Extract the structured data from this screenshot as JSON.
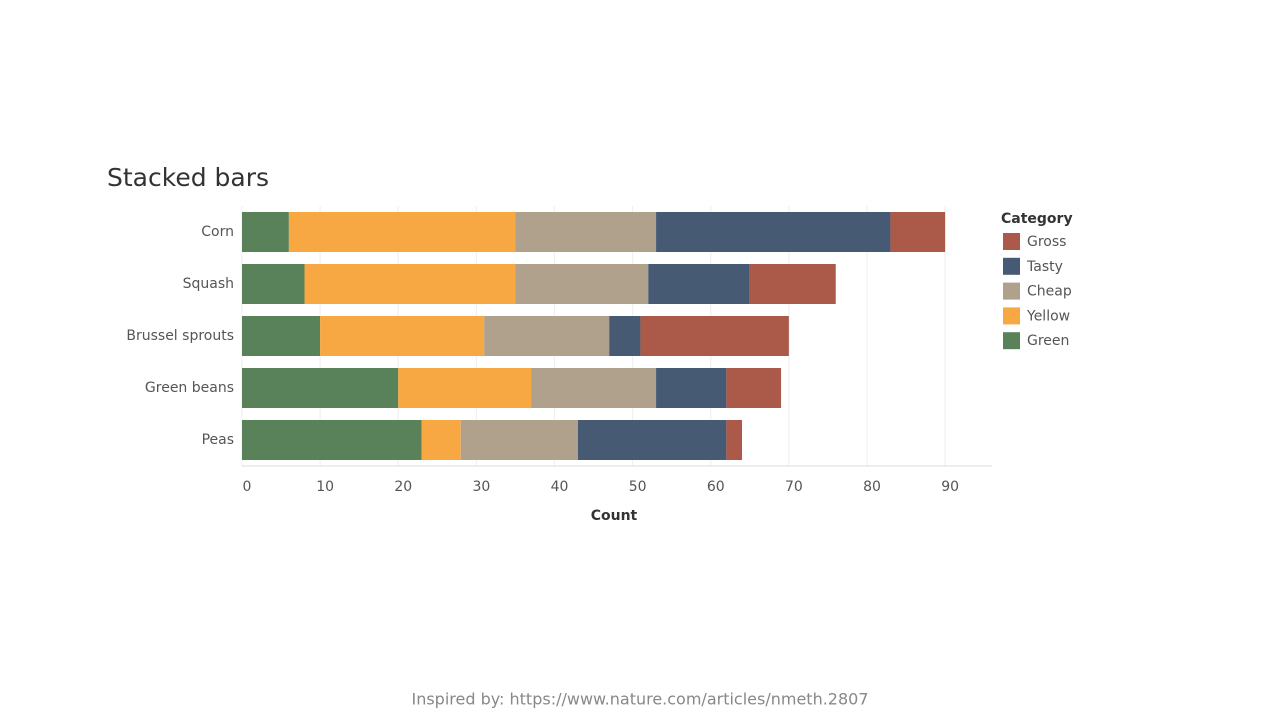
{
  "chart_data": {
    "type": "stacked-bar-horizontal",
    "title": "Stacked bars",
    "categories": [
      "Corn",
      "Squash",
      "Brussel sprouts",
      "Green beans",
      "Peas"
    ],
    "series": [
      {
        "name": "Green",
        "color": "#59825b",
        "values": [
          6,
          8,
          10,
          20,
          23
        ]
      },
      {
        "name": "Yellow",
        "color": "#f8a843",
        "values": [
          29,
          27,
          21,
          17,
          5
        ]
      },
      {
        "name": "Cheap",
        "color": "#b0a18d",
        "values": [
          18,
          17,
          16,
          16,
          15
        ]
      },
      {
        "name": "Tasty",
        "color": "#475a73",
        "values": [
          30,
          13,
          4,
          9,
          19
        ]
      },
      {
        "name": "Gross",
        "color": "#ab5a4a",
        "values": [
          7,
          11,
          19,
          7,
          2
        ]
      }
    ],
    "legend_title": "Category",
    "x_label": "Count",
    "xlim": [
      0,
      96
    ],
    "xticks": [
      0,
      10,
      20,
      30,
      40,
      50,
      60,
      70,
      80,
      90
    ],
    "grid": true,
    "caption": "Inspired by: https://www.nature.com/articles/nmeth.2807"
  }
}
